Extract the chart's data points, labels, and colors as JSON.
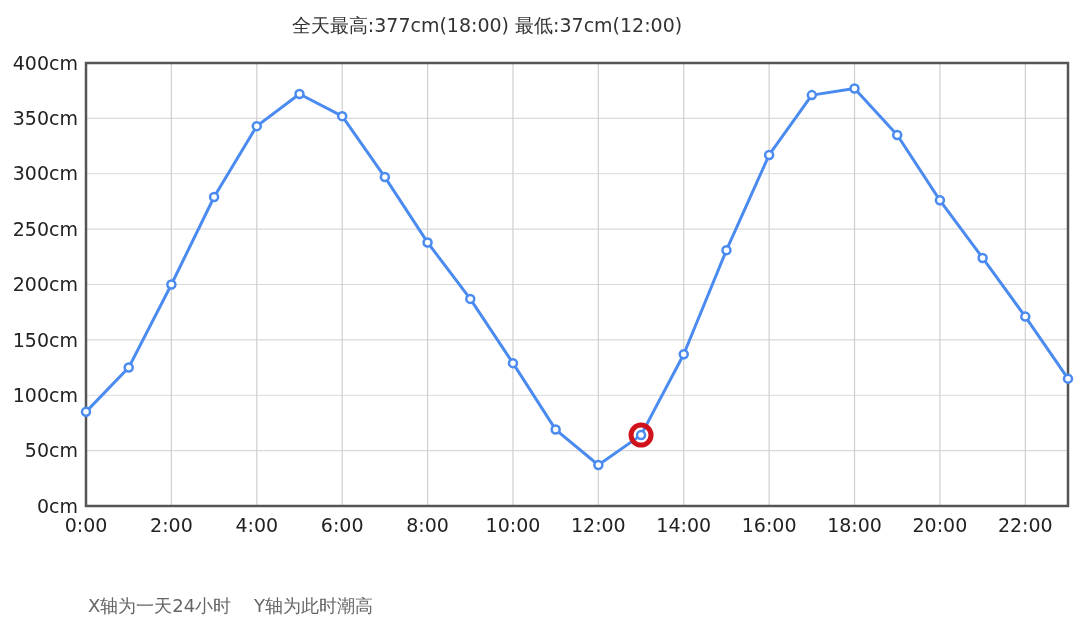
{
  "chart_data": {
    "type": "line",
    "title": "全天最高:377cm(18:00) 最低:37cm(12:00)",
    "x": [
      0,
      1,
      2,
      3,
      4,
      5,
      6,
      7,
      8,
      9,
      10,
      11,
      12,
      13,
      14,
      15,
      16,
      17,
      18,
      19,
      20,
      21,
      22,
      23
    ],
    "series": [
      {
        "color": "#4b8bf0",
        "values": [
          85,
          125,
          200,
          279,
          343,
          372,
          352,
          297,
          238,
          187,
          129,
          69,
          37,
          64,
          137,
          231,
          317,
          371,
          377,
          335,
          276,
          224,
          171,
          115
        ]
      },
      {
        "type": "scatter",
        "color": "#d0121b",
        "x": [
          13
        ],
        "values": [
          64
        ]
      }
    ],
    "xlim": [
      0,
      23
    ],
    "xticks": [
      {
        "value": 0,
        "label": "0:00"
      },
      {
        "value": 2,
        "label": "2:00"
      },
      {
        "value": 4,
        "label": "4:00"
      },
      {
        "value": 6,
        "label": "6:00"
      },
      {
        "value": 8,
        "label": "8:00"
      },
      {
        "value": 10,
        "label": "10:00"
      },
      {
        "value": 12,
        "label": "12:00"
      },
      {
        "value": 14,
        "label": "14:00"
      },
      {
        "value": 16,
        "label": "16:00"
      },
      {
        "value": 18,
        "label": "18:00"
      },
      {
        "value": 20,
        "label": "20:00"
      },
      {
        "value": 22,
        "label": "22:00"
      }
    ],
    "ylim": [
      0,
      400
    ],
    "yticks": [
      {
        "value": 0,
        "label": "0cm"
      },
      {
        "value": 50,
        "label": "50cm"
      },
      {
        "value": 100,
        "label": "100cm"
      },
      {
        "value": 150,
        "label": "150cm"
      },
      {
        "value": 200,
        "label": "200cm"
      },
      {
        "value": 250,
        "label": "250cm"
      },
      {
        "value": 300,
        "label": "300cm"
      },
      {
        "value": 350,
        "label": "350cm"
      },
      {
        "value": 400,
        "label": "400cm"
      }
    ],
    "grid": true,
    "marker": "circle",
    "line_style": "solid",
    "annotations": [
      "X轴为一天24小时    Y轴为此时潮高"
    ]
  }
}
